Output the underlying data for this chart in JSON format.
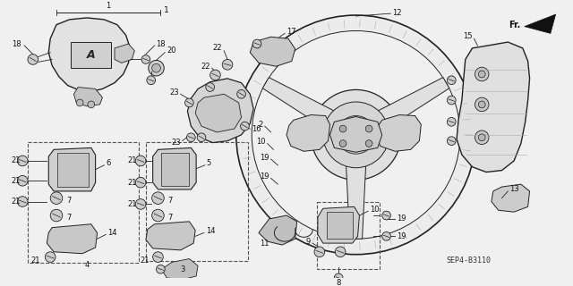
{
  "background_color": "#f0f0f0",
  "line_color": "#222222",
  "part_number_text": "SEP4-B3110",
  "fr_label": "Fr.",
  "fig_width": 6.4,
  "fig_height": 3.2,
  "dpi": 100,
  "label_fontsize": 5.8,
  "component_color": "#d8d8d8",
  "component_edge": "#222222"
}
